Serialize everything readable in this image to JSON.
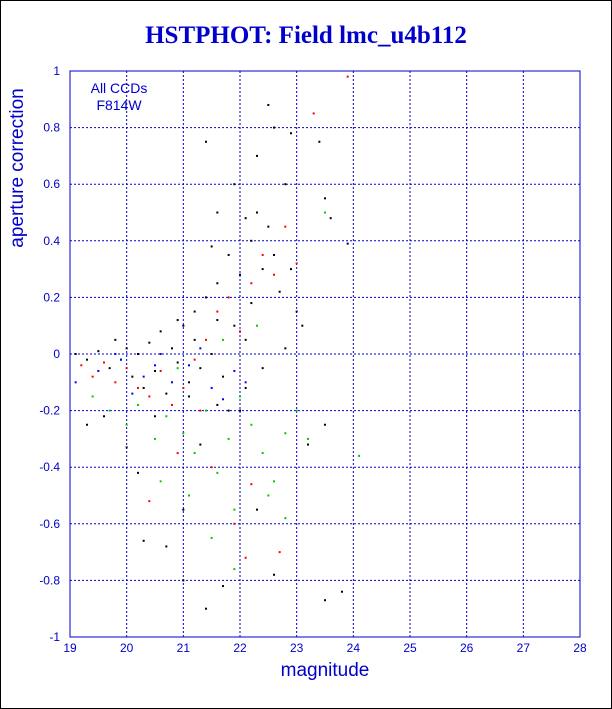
{
  "chart_data": {
    "type": "scatter",
    "title": "HSTPHOT: Field lmc_u4b112",
    "xlabel": "magnitude",
    "ylabel": "aperture correction",
    "xlim": [
      19,
      28
    ],
    "ylim": [
      -1,
      1
    ],
    "xticks": [
      19,
      20,
      21,
      22,
      23,
      24,
      25,
      26,
      27,
      28
    ],
    "yticks": [
      -1,
      -0.8,
      -0.6,
      -0.4,
      -0.2,
      0,
      0.2,
      0.4,
      0.6,
      0.8,
      1
    ],
    "ytick_labels": [
      "-1",
      "-0.8",
      "-0.6",
      "-0.4",
      "-0.2",
      "0",
      "0.2",
      "0.4",
      "0.6",
      "0.8",
      "1"
    ],
    "grid": true,
    "annotation": [
      "All CCDs",
      "F814W"
    ],
    "series": [
      {
        "color": "#000000",
        "points": [
          [
            19.1,
            0.0
          ],
          [
            19.3,
            -0.02
          ],
          [
            19.5,
            0.01
          ],
          [
            19.7,
            -0.05
          ],
          [
            19.8,
            0.05
          ],
          [
            19.9,
            -0.02
          ],
          [
            20.0,
            0.02
          ],
          [
            20.1,
            -0.08
          ],
          [
            20.2,
            0.0
          ],
          [
            20.3,
            -0.12
          ],
          [
            20.4,
            0.04
          ],
          [
            20.5,
            -0.06
          ],
          [
            20.6,
            0.08
          ],
          [
            20.7,
            -0.14
          ],
          [
            20.8,
            0.02
          ],
          [
            20.9,
            -0.03
          ],
          [
            21.0,
            0.1
          ],
          [
            21.1,
            -0.1
          ],
          [
            21.2,
            0.15
          ],
          [
            21.3,
            -0.05
          ],
          [
            21.4,
            0.2
          ],
          [
            21.5,
            0.0
          ],
          [
            21.6,
            0.25
          ],
          [
            21.7,
            -0.08
          ],
          [
            21.8,
            0.35
          ],
          [
            21.9,
            0.1
          ],
          [
            22.0,
            0.28
          ],
          [
            22.1,
            0.05
          ],
          [
            22.2,
            0.4
          ],
          [
            22.3,
            0.5
          ],
          [
            22.4,
            0.3
          ],
          [
            22.5,
            0.45
          ],
          [
            22.6,
            0.35
          ],
          [
            22.7,
            0.22
          ],
          [
            22.8,
            0.6
          ],
          [
            22.9,
            0.3
          ],
          [
            23.0,
            0.15
          ],
          [
            22.3,
            0.7
          ],
          [
            22.5,
            0.88
          ],
          [
            22.6,
            0.8
          ],
          [
            22.9,
            0.78
          ],
          [
            23.4,
            0.75
          ],
          [
            23.5,
            0.55
          ],
          [
            23.6,
            0.48
          ],
          [
            23.9,
            0.39
          ],
          [
            21.4,
            0.75
          ],
          [
            21.6,
            0.5
          ],
          [
            22.1,
            0.48
          ],
          [
            21.9,
            0.6
          ],
          [
            21.5,
            0.38
          ],
          [
            20.7,
            -0.68
          ],
          [
            21.0,
            -0.8
          ],
          [
            21.4,
            -0.9
          ],
          [
            20.2,
            -0.42
          ],
          [
            19.3,
            -0.25
          ],
          [
            19.6,
            -0.22
          ],
          [
            21.7,
            -0.82
          ],
          [
            22.6,
            -0.78
          ],
          [
            23.5,
            -0.25
          ],
          [
            23.2,
            -0.32
          ],
          [
            23.8,
            -0.84
          ],
          [
            23.5,
            -0.87
          ],
          [
            22.0,
            -0.2
          ],
          [
            21.3,
            -0.32
          ],
          [
            20.5,
            -0.22
          ],
          [
            21.1,
            -0.15
          ],
          [
            20.9,
            0.12
          ],
          [
            21.2,
            0.05
          ],
          [
            21.6,
            0.12
          ],
          [
            22.2,
            0.18
          ],
          [
            22.4,
            -0.05
          ],
          [
            22.8,
            0.02
          ],
          [
            23.1,
            0.1
          ],
          [
            20.0,
            -0.33
          ],
          [
            20.3,
            -0.66
          ],
          [
            21.8,
            -0.2
          ],
          [
            22.1,
            -0.12
          ],
          [
            22.3,
            -0.55
          ],
          [
            21.0,
            -0.55
          ],
          [
            21.6,
            -0.18
          ]
        ]
      },
      {
        "color": "#ff0000",
        "points": [
          [
            19.2,
            -0.04
          ],
          [
            19.4,
            -0.08
          ],
          [
            19.6,
            -0.03
          ],
          [
            19.8,
            -0.1
          ],
          [
            20.0,
            -0.05
          ],
          [
            20.2,
            -0.12
          ],
          [
            20.4,
            -0.15
          ],
          [
            20.6,
            -0.06
          ],
          [
            20.8,
            -0.18
          ],
          [
            21.0,
            -0.12
          ],
          [
            21.2,
            -0.02
          ],
          [
            21.4,
            0.05
          ],
          [
            21.6,
            0.15
          ],
          [
            21.8,
            0.2
          ],
          [
            22.0,
            0.08
          ],
          [
            22.2,
            0.25
          ],
          [
            22.4,
            0.35
          ],
          [
            22.6,
            0.28
          ],
          [
            22.8,
            0.45
          ],
          [
            23.0,
            0.32
          ],
          [
            23.3,
            0.85
          ],
          [
            23.9,
            0.98
          ],
          [
            21.5,
            -0.4
          ],
          [
            22.2,
            -0.46
          ],
          [
            20.4,
            -0.52
          ],
          [
            21.9,
            -0.6
          ],
          [
            22.7,
            -0.7
          ],
          [
            22.1,
            -0.72
          ],
          [
            20.9,
            -0.35
          ],
          [
            21.3,
            -0.2
          ]
        ]
      },
      {
        "color": "#00cc00",
        "points": [
          [
            19.4,
            -0.15
          ],
          [
            19.7,
            -0.2
          ],
          [
            20.0,
            -0.25
          ],
          [
            20.2,
            -0.18
          ],
          [
            20.5,
            -0.3
          ],
          [
            20.7,
            -0.22
          ],
          [
            21.0,
            -0.28
          ],
          [
            21.2,
            -0.35
          ],
          [
            21.4,
            -0.2
          ],
          [
            21.6,
            -0.42
          ],
          [
            21.8,
            -0.3
          ],
          [
            22.0,
            -0.15
          ],
          [
            22.2,
            -0.25
          ],
          [
            22.4,
            -0.35
          ],
          [
            22.6,
            -0.45
          ],
          [
            22.8,
            -0.28
          ],
          [
            23.0,
            -0.2
          ],
          [
            20.6,
            -0.45
          ],
          [
            21.1,
            -0.5
          ],
          [
            21.9,
            -0.55
          ],
          [
            22.5,
            -0.5
          ],
          [
            23.2,
            -0.3
          ],
          [
            24.1,
            -0.36
          ],
          [
            23.5,
            0.5
          ],
          [
            22.3,
            0.1
          ],
          [
            21.7,
            0.05
          ],
          [
            20.9,
            -0.05
          ],
          [
            21.5,
            -0.65
          ],
          [
            21.9,
            -0.76
          ],
          [
            22.8,
            -0.58
          ]
        ]
      },
      {
        "color": "#0000ff",
        "points": [
          [
            19.1,
            -0.1
          ],
          [
            19.5,
            -0.06
          ],
          [
            19.9,
            -0.02
          ],
          [
            20.3,
            -0.08
          ],
          [
            20.6,
            0.0
          ],
          [
            20.8,
            -0.1
          ],
          [
            21.1,
            -0.04
          ],
          [
            21.5,
            -0.12
          ],
          [
            21.9,
            -0.06
          ],
          [
            20.1,
            -0.14
          ],
          [
            19.8,
            0.0
          ],
          [
            20.5,
            -0.04
          ],
          [
            21.3,
            0.02
          ],
          [
            21.7,
            -0.16
          ],
          [
            22.1,
            -0.1
          ]
        ]
      }
    ]
  }
}
